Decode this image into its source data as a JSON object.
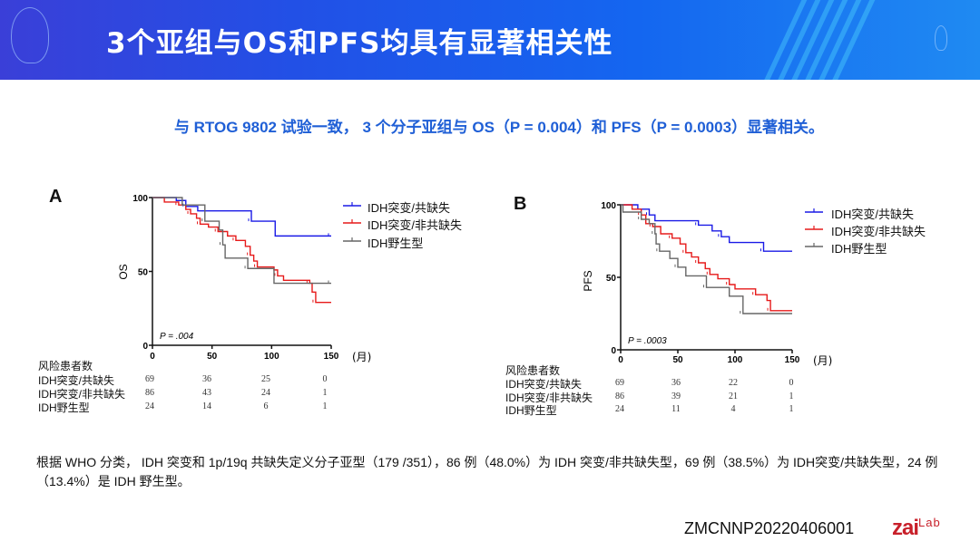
{
  "header": {
    "title": "3个亚组与OS和PFS均具有显著相关性"
  },
  "subtitle": "与 RTOG 9802 试验一致， 3 个分子亚组与 OS（P = 0.004）和 PFS（P = 0.0003）显著相关。",
  "colors": {
    "header_blue": "#1f5fe6",
    "series": [
      "#1a1ae6",
      "#e61a1a",
      "#666666"
    ],
    "brand_red": "#c8202a"
  },
  "chart_data": [
    {
      "type": "line",
      "panel": "A",
      "ylabel": "OS",
      "xunit": "(月)",
      "xlim": [
        0,
        150
      ],
      "ylim": [
        0,
        100
      ],
      "xticks": [
        "0",
        "50",
        "100",
        "150"
      ],
      "yticks": [
        "0",
        "50",
        "100"
      ],
      "pvalue": "P = .004",
      "legend_position": "right",
      "series": [
        {
          "name": "IDH突变/共缺失",
          "points": [
            [
              0,
              100
            ],
            [
              20,
              98
            ],
            [
              28,
              94
            ],
            [
              38,
              91
            ],
            [
              83,
              84
            ],
            [
              103,
              74
            ],
            [
              150,
              74
            ]
          ]
        },
        {
          "name": "IDH突变/非共缺失",
          "points": [
            [
              0,
              100
            ],
            [
              10,
              97
            ],
            [
              22,
              95
            ],
            [
              28,
              92
            ],
            [
              32,
              89
            ],
            [
              37,
              86
            ],
            [
              40,
              82
            ],
            [
              47,
              80
            ],
            [
              55,
              77
            ],
            [
              63,
              74
            ],
            [
              70,
              71
            ],
            [
              78,
              67
            ],
            [
              82,
              61
            ],
            [
              85,
              57
            ],
            [
              88,
              53
            ],
            [
              102,
              51
            ],
            [
              105,
              47
            ],
            [
              110,
              44
            ],
            [
              132,
              42
            ],
            [
              134,
              36
            ],
            [
              137,
              29
            ],
            [
              150,
              29
            ]
          ]
        },
        {
          "name": "IDH野生型",
          "points": [
            [
              0,
              100
            ],
            [
              25,
              95
            ],
            [
              44,
              84
            ],
            [
              56,
              78
            ],
            [
              59,
              68
            ],
            [
              61,
              59
            ],
            [
              80,
              52
            ],
            [
              102,
              42
            ],
            [
              150,
              42
            ]
          ]
        }
      ],
      "risk_table": {
        "title": "风险患者数",
        "timepoints": [
          0,
          50,
          100,
          150
        ],
        "rows": [
          {
            "label": "IDH突变/共缺失",
            "values": [
              "69",
              "36",
              "25",
              "0"
            ]
          },
          {
            "label": "IDH突变/非共缺失",
            "values": [
              "86",
              "43",
              "24",
              "1"
            ]
          },
          {
            "label": "IDH野生型",
            "values": [
              "24",
              "14",
              "6",
              "1"
            ]
          }
        ]
      }
    },
    {
      "type": "line",
      "panel": "B",
      "ylabel": "PFS",
      "xunit": "(月)",
      "xlim": [
        0,
        150
      ],
      "ylim": [
        0,
        100
      ],
      "xticks": [
        "0",
        "50",
        "100",
        "150"
      ],
      "yticks": [
        "0",
        "50",
        "100"
      ],
      "pvalue": "P = .0003",
      "legend_position": "right",
      "series": [
        {
          "name": "IDH突变/共缺失",
          "points": [
            [
              0,
              100
            ],
            [
              15,
              97
            ],
            [
              25,
              93
            ],
            [
              30,
              89
            ],
            [
              68,
              86
            ],
            [
              80,
              82
            ],
            [
              88,
              78
            ],
            [
              95,
              74
            ],
            [
              125,
              68
            ],
            [
              150,
              68
            ]
          ]
        },
        {
          "name": "IDH突变/非共缺失",
          "points": [
            [
              0,
              100
            ],
            [
              10,
              97
            ],
            [
              18,
              93
            ],
            [
              22,
              87
            ],
            [
              28,
              85
            ],
            [
              35,
              80
            ],
            [
              45,
              77
            ],
            [
              52,
              73
            ],
            [
              57,
              67
            ],
            [
              62,
              64
            ],
            [
              68,
              60
            ],
            [
              74,
              56
            ],
            [
              78,
              52
            ],
            [
              85,
              49
            ],
            [
              95,
              45
            ],
            [
              100,
              42
            ],
            [
              118,
              38
            ],
            [
              128,
              34
            ],
            [
              131,
              27
            ],
            [
              150,
              27
            ]
          ]
        },
        {
          "name": "IDH野生型",
          "points": [
            [
              0,
              100
            ],
            [
              2,
              95
            ],
            [
              18,
              90
            ],
            [
              25,
              87
            ],
            [
              30,
              80
            ],
            [
              31,
              73
            ],
            [
              34,
              68
            ],
            [
              43,
              63
            ],
            [
              50,
              57
            ],
            [
              57,
              51
            ],
            [
              75,
              43
            ],
            [
              95,
              37
            ],
            [
              107,
              25
            ],
            [
              150,
              25
            ]
          ]
        }
      ],
      "risk_table": {
        "title": "风险患者数",
        "timepoints": [
          0,
          50,
          100,
          150
        ],
        "rows": [
          {
            "label": "IDH突变/共缺失",
            "values": [
              "69",
              "36",
              "22",
              "0"
            ]
          },
          {
            "label": "IDH突变/非共缺失",
            "values": [
              "86",
              "39",
              "21",
              "1"
            ]
          },
          {
            "label": "IDH野生型",
            "values": [
              "24",
              "11",
              "4",
              "1"
            ]
          }
        ]
      }
    }
  ],
  "footnote": "根据 WHO 分类， IDH 突变和 1p/19q 共缺失定义分子亚型（179 /351），86 例（48.0%）为 IDH 突变/非共缺失型，69 例（38.5%）为 IDH突变/共缺失型，24 例（13.4%）是 IDH 野生型。",
  "footer": {
    "code": "ZMCNNP20220406001",
    "logo": "zai lab 再鼎医药"
  }
}
